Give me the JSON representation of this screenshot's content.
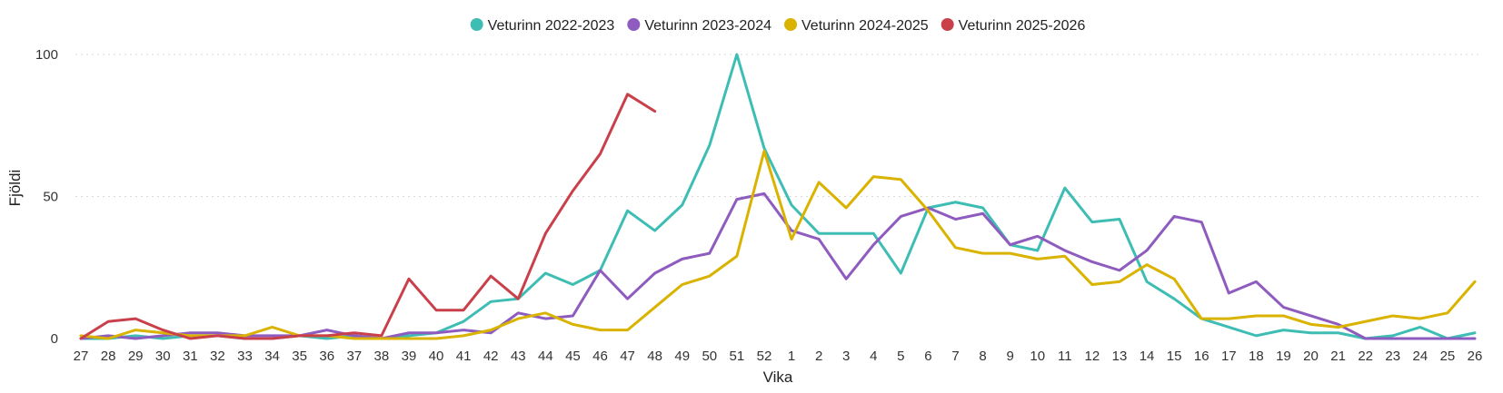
{
  "chart_data": {
    "type": "line",
    "title": "",
    "xlabel": "Vika",
    "ylabel": "Fjöldi",
    "ylim": [
      0,
      100
    ],
    "yticks": [
      0,
      50,
      100
    ],
    "grid": true,
    "legend_position": "top-center",
    "categories": [
      "27",
      "28",
      "29",
      "30",
      "31",
      "32",
      "33",
      "34",
      "35",
      "36",
      "37",
      "38",
      "39",
      "40",
      "41",
      "42",
      "43",
      "44",
      "45",
      "46",
      "47",
      "48",
      "49",
      "50",
      "51",
      "52",
      "1",
      "2",
      "3",
      "4",
      "5",
      "6",
      "7",
      "8",
      "9",
      "10",
      "11",
      "12",
      "13",
      "14",
      "15",
      "16",
      "17",
      "18",
      "19",
      "20",
      "21",
      "22",
      "23",
      "24",
      "25",
      "26"
    ],
    "series": [
      {
        "name": "Veturinn 2022-2023",
        "color": "#3dbdb3",
        "values": [
          0,
          0,
          1,
          0,
          1,
          1,
          0,
          0,
          1,
          0,
          1,
          0,
          1,
          2,
          6,
          13,
          14,
          23,
          19,
          24,
          45,
          38,
          47,
          68,
          100,
          67,
          47,
          37,
          37,
          37,
          23,
          46,
          48,
          46,
          33,
          31,
          53,
          41,
          42,
          20,
          14,
          7,
          4,
          1,
          3,
          2,
          2,
          0,
          1,
          4,
          0,
          2
        ]
      },
      {
        "name": "Veturinn 2023-2024",
        "color": "#8e5bbf",
        "values": [
          0,
          1,
          0,
          1,
          2,
          2,
          1,
          1,
          1,
          3,
          1,
          0,
          2,
          2,
          3,
          2,
          9,
          7,
          8,
          24,
          14,
          23,
          28,
          30,
          49,
          51,
          38,
          35,
          21,
          33,
          43,
          46,
          42,
          44,
          33,
          36,
          31,
          27,
          24,
          31,
          43,
          41,
          16,
          20,
          11,
          8,
          5,
          0,
          0,
          0,
          0,
          0
        ]
      },
      {
        "name": "Veturinn 2024-2025",
        "color": "#d9b300",
        "values": [
          1,
          0,
          3,
          2,
          1,
          1,
          1,
          4,
          1,
          1,
          0,
          0,
          0,
          0,
          1,
          3,
          7,
          9,
          5,
          3,
          3,
          11,
          19,
          22,
          29,
          66,
          35,
          55,
          46,
          57,
          56,
          45,
          32,
          30,
          30,
          28,
          29,
          19,
          20,
          26,
          21,
          7,
          7,
          8,
          8,
          5,
          4,
          6,
          8,
          7,
          9,
          20
        ]
      },
      {
        "name": "Veturinn 2025-2026",
        "color": "#c9404b",
        "values": [
          0,
          6,
          7,
          3,
          0,
          1,
          0,
          0,
          1,
          1,
          2,
          1,
          21,
          10,
          10,
          22,
          14,
          37,
          52,
          65,
          86,
          80,
          null,
          null,
          null,
          null,
          null,
          null,
          null,
          null,
          null,
          null,
          null,
          null,
          null,
          null,
          null,
          null,
          null,
          null,
          null,
          null,
          null,
          null,
          null,
          null,
          null,
          null,
          null,
          null,
          null,
          null
        ]
      }
    ]
  }
}
